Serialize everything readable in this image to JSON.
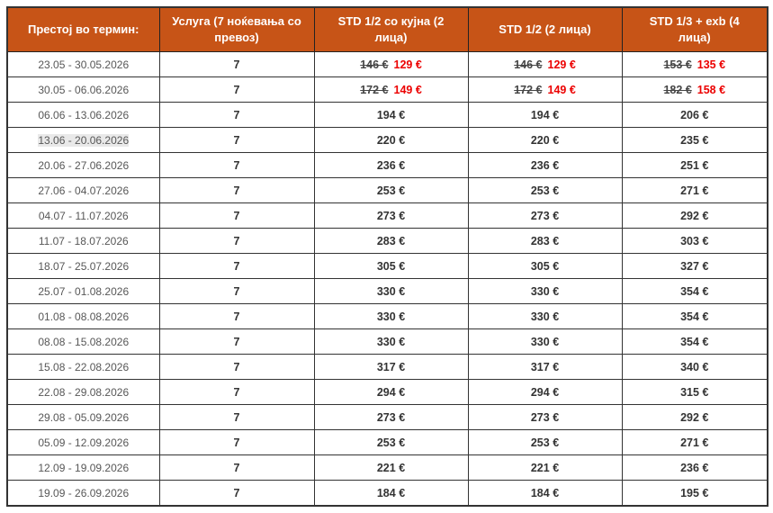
{
  "colors": {
    "header_bg": "#c75417",
    "header_text": "#ffffff",
    "border": "#333333",
    "date_text": "#575757",
    "price_text": "#333333",
    "old_price_text": "#454545",
    "promo_price_text": "#ec0000",
    "highlight_bg": "#e9e9e9",
    "page_bg": "#ffffff"
  },
  "table": {
    "columns": [
      {
        "label": "Престој во термин:"
      },
      {
        "label": "Услуга (7 ноќевања со превоз)"
      },
      {
        "label": "STD 1/2 со кујна (2 лица)"
      },
      {
        "label": "STD 1/2 (2 лица)"
      },
      {
        "label": "STD 1/3 + exb (4 лица)"
      }
    ],
    "rows": [
      {
        "term": "23.05 - 30.05.2026",
        "service": "7",
        "prices": [
          {
            "old": "146 €",
            "new": "129 €"
          },
          {
            "old": "146 €",
            "new": "129 €"
          },
          {
            "old": "153 €",
            "new": "135 €"
          }
        ]
      },
      {
        "term": "30.05 - 06.06.2026",
        "service": "7",
        "prices": [
          {
            "old": "172 €",
            "new": "149 €"
          },
          {
            "old": "172 €",
            "new": "149 €"
          },
          {
            "old": "182 €",
            "new": "158 €"
          }
        ]
      },
      {
        "term": "06.06 - 13.06.2026",
        "service": "7",
        "prices": [
          {
            "value": "194 €"
          },
          {
            "value": "194 €"
          },
          {
            "value": "206 €"
          }
        ]
      },
      {
        "term": "13.06 - 20.06.2026",
        "service": "7",
        "highlighted": true,
        "prices": [
          {
            "value": "220 €"
          },
          {
            "value": "220 €"
          },
          {
            "value": "235 €"
          }
        ]
      },
      {
        "term": "20.06 - 27.06.2026",
        "service": "7",
        "prices": [
          {
            "value": "236 €"
          },
          {
            "value": "236 €"
          },
          {
            "value": "251 €"
          }
        ]
      },
      {
        "term": "27.06 - 04.07.2026",
        "service": "7",
        "prices": [
          {
            "value": "253 €"
          },
          {
            "value": "253 €"
          },
          {
            "value": "271 €"
          }
        ]
      },
      {
        "term": "04.07 - 11.07.2026",
        "service": "7",
        "prices": [
          {
            "value": "273 €"
          },
          {
            "value": "273 €"
          },
          {
            "value": "292 €"
          }
        ]
      },
      {
        "term": "11.07 - 18.07.2026",
        "service": "7",
        "prices": [
          {
            "value": "283 €"
          },
          {
            "value": "283 €"
          },
          {
            "value": "303 €"
          }
        ]
      },
      {
        "term": "18.07 - 25.07.2026",
        "service": "7",
        "prices": [
          {
            "value": "305 €"
          },
          {
            "value": "305 €"
          },
          {
            "value": "327 €"
          }
        ]
      },
      {
        "term": "25.07 - 01.08.2026",
        "service": "7",
        "prices": [
          {
            "value": "330 €"
          },
          {
            "value": "330 €"
          },
          {
            "value": "354 €"
          }
        ]
      },
      {
        "term": "01.08 - 08.08.2026",
        "service": "7",
        "prices": [
          {
            "value": "330 €"
          },
          {
            "value": "330 €"
          },
          {
            "value": "354 €"
          }
        ]
      },
      {
        "term": "08.08 - 15.08.2026",
        "service": "7",
        "prices": [
          {
            "value": "330 €"
          },
          {
            "value": "330 €"
          },
          {
            "value": "354 €"
          }
        ]
      },
      {
        "term": "15.08 - 22.08.2026",
        "service": "7",
        "prices": [
          {
            "value": "317 €"
          },
          {
            "value": "317 €"
          },
          {
            "value": "340 €"
          }
        ]
      },
      {
        "term": "22.08 - 29.08.2026",
        "service": "7",
        "prices": [
          {
            "value": "294 €"
          },
          {
            "value": "294 €"
          },
          {
            "value": "315 €"
          }
        ]
      },
      {
        "term": "29.08 - 05.09.2026",
        "service": "7",
        "prices": [
          {
            "value": "273 €"
          },
          {
            "value": "273 €"
          },
          {
            "value": "292 €"
          }
        ]
      },
      {
        "term": "05.09 - 12.09.2026",
        "service": "7",
        "prices": [
          {
            "value": "253 €"
          },
          {
            "value": "253 €"
          },
          {
            "value": "271 €"
          }
        ]
      },
      {
        "term": "12.09 - 19.09.2026",
        "service": "7",
        "prices": [
          {
            "value": "221 €"
          },
          {
            "value": "221 €"
          },
          {
            "value": "236 €"
          }
        ]
      },
      {
        "term": "19.09 - 26.09.2026",
        "service": "7",
        "prices": [
          {
            "value": "184 €"
          },
          {
            "value": "184 €"
          },
          {
            "value": "195 €"
          }
        ]
      }
    ]
  }
}
